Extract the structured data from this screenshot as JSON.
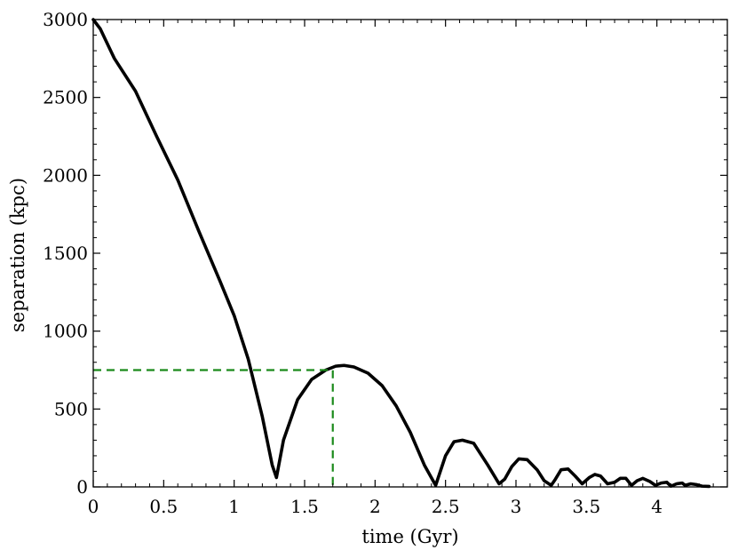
{
  "chart_data": {
    "type": "line",
    "title": "",
    "xlabel": "time (Gyr)",
    "ylabel": "separation (kpc)",
    "xlim": [
      0,
      4.5
    ],
    "ylim": [
      0,
      3000
    ],
    "x_ticks": [
      "0",
      "0.5",
      "1",
      "1.5",
      "2",
      "2.5",
      "3",
      "3.5",
      "4"
    ],
    "y_ticks": [
      "0",
      "500",
      "1000",
      "1500",
      "2000",
      "2500",
      "3000"
    ],
    "grid": false,
    "legend": "none",
    "series": [
      {
        "color": "#000000",
        "style": "solid",
        "x": [
          0,
          0.05,
          0.15,
          0.3,
          0.45,
          0.6,
          0.75,
          0.9,
          1.0,
          1.1,
          1.2,
          1.27,
          1.3,
          1.35,
          1.45,
          1.55,
          1.65,
          1.72,
          1.78,
          1.85,
          1.95,
          2.05,
          2.15,
          2.25,
          2.35,
          2.43,
          2.5,
          2.56,
          2.62,
          2.7,
          2.8,
          2.88,
          2.92,
          2.97,
          3.02,
          3.08,
          3.15,
          3.2,
          3.25,
          3.28,
          3.32,
          3.37,
          3.42,
          3.47,
          3.52,
          3.56,
          3.6,
          3.65,
          3.7,
          3.74,
          3.78,
          3.82,
          3.86,
          3.9,
          3.95,
          3.99,
          4.03,
          4.07,
          4.1,
          4.14,
          4.18,
          4.2,
          4.24,
          4.28,
          4.32,
          4.37
        ],
        "y": [
          3000,
          2940,
          2750,
          2540,
          2250,
          1970,
          1640,
          1320,
          1100,
          820,
          450,
          140,
          60,
          300,
          560,
          690,
          750,
          775,
          780,
          770,
          730,
          650,
          520,
          350,
          140,
          10,
          200,
          290,
          300,
          280,
          140,
          20,
          50,
          130,
          180,
          175,
          110,
          40,
          10,
          50,
          110,
          115,
          70,
          20,
          60,
          80,
          70,
          20,
          30,
          55,
          55,
          10,
          40,
          55,
          35,
          10,
          25,
          30,
          5,
          20,
          25,
          10,
          20,
          15,
          5,
          3
        ]
      },
      {
        "color": "#1a8a1a",
        "style": "dashed",
        "x": [
          0,
          1.7,
          1.7
        ],
        "y": [
          750,
          750,
          0
        ]
      }
    ]
  }
}
